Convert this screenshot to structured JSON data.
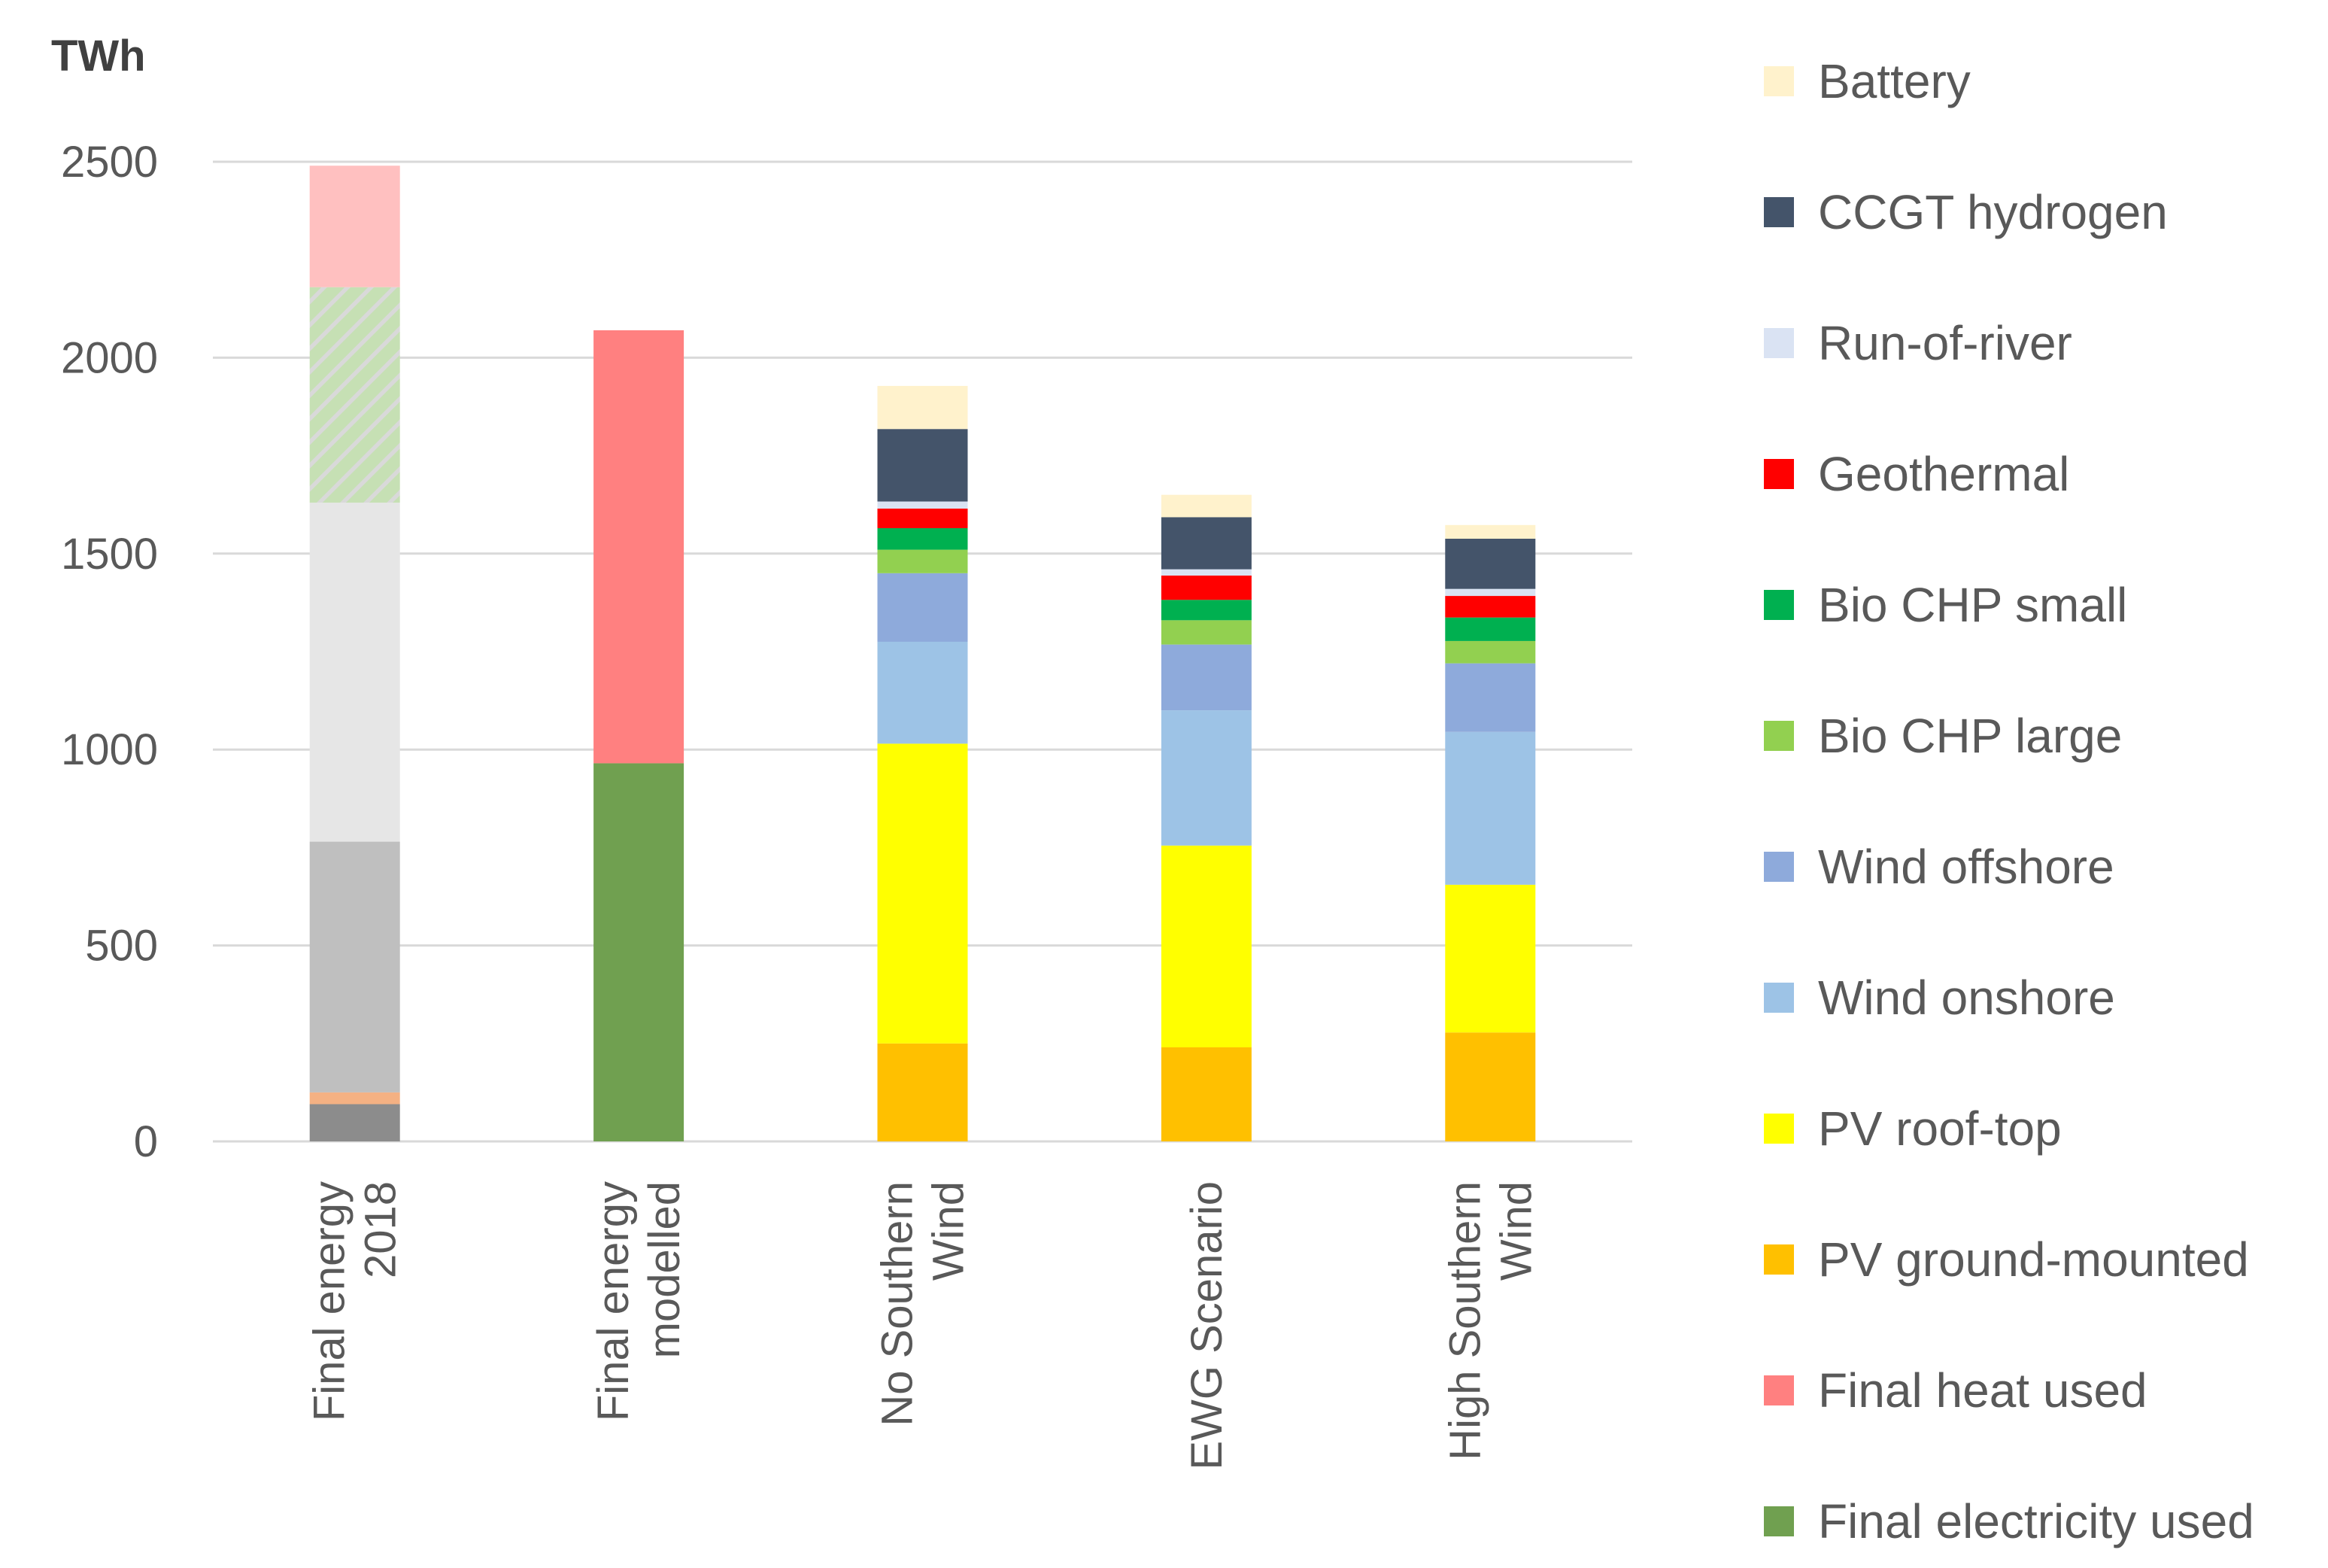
{
  "chart_data": {
    "type": "bar",
    "stacked": true,
    "unit_label": "TWh",
    "ylim": [
      0,
      2500
    ],
    "yticks": [
      0,
      500,
      1000,
      1500,
      2000,
      2500
    ],
    "grid": true,
    "legend_position": "right",
    "categories": [
      [
        "Final energy",
        "2018"
      ],
      [
        "Final energy",
        "modelled"
      ],
      [
        "No Southern",
        "Wind"
      ],
      [
        "EWG Scenario"
      ],
      [
        "High Southern",
        "Wind"
      ]
    ],
    "reference_bar_2018": {
      "note": "unlabeled reference segments (not in legend)",
      "segments": [
        {
          "value": 95,
          "color": "#8c8c8c"
        },
        {
          "value": 30,
          "color": "#f4b183"
        },
        {
          "value": 640,
          "color": "#bfbfbf"
        },
        {
          "value": 865,
          "color": "#e6e6e6"
        },
        {
          "value": 550,
          "color": "#c6e0b4",
          "hatched": true
        },
        {
          "value": 310,
          "color": "#ffc0c0"
        }
      ]
    },
    "series": [
      {
        "name": "Final electricity used",
        "color": "#70a050",
        "values": [
          0,
          965,
          0,
          0,
          0
        ]
      },
      {
        "name": "Final heat used",
        "color": "#ff8080",
        "values": [
          0,
          1105,
          0,
          0,
          0
        ]
      },
      {
        "name": "PV ground-mounted",
        "color": "#ffc000",
        "values": [
          0,
          0,
          250,
          240,
          278
        ]
      },
      {
        "name": "PV roof-top",
        "color": "#ffff00",
        "values": [
          0,
          0,
          765,
          515,
          377
        ]
      },
      {
        "name": "Wind onshore",
        "color": "#9dc3e6",
        "values": [
          0,
          0,
          260,
          345,
          390
        ]
      },
      {
        "name": "Wind offshore",
        "color": "#8eaadb",
        "values": [
          0,
          0,
          175,
          168,
          175
        ]
      },
      {
        "name": "Bio CHP large",
        "color": "#92d050",
        "values": [
          0,
          0,
          60,
          62,
          57
        ]
      },
      {
        "name": "Bio CHP small",
        "color": "#00b050",
        "values": [
          0,
          0,
          55,
          52,
          60
        ]
      },
      {
        "name": "Geothermal",
        "color": "#ff0000",
        "values": [
          0,
          0,
          50,
          62,
          55
        ]
      },
      {
        "name": "Run-of-river",
        "color": "#dae3f3",
        "values": [
          0,
          0,
          18,
          16,
          18
        ]
      },
      {
        "name": "CCGT hydrogen",
        "color": "#44546a",
        "values": [
          0,
          0,
          185,
          133,
          128
        ]
      },
      {
        "name": "Battery",
        "color": "#fff2cc",
        "values": [
          0,
          0,
          110,
          57,
          35
        ]
      }
    ]
  }
}
